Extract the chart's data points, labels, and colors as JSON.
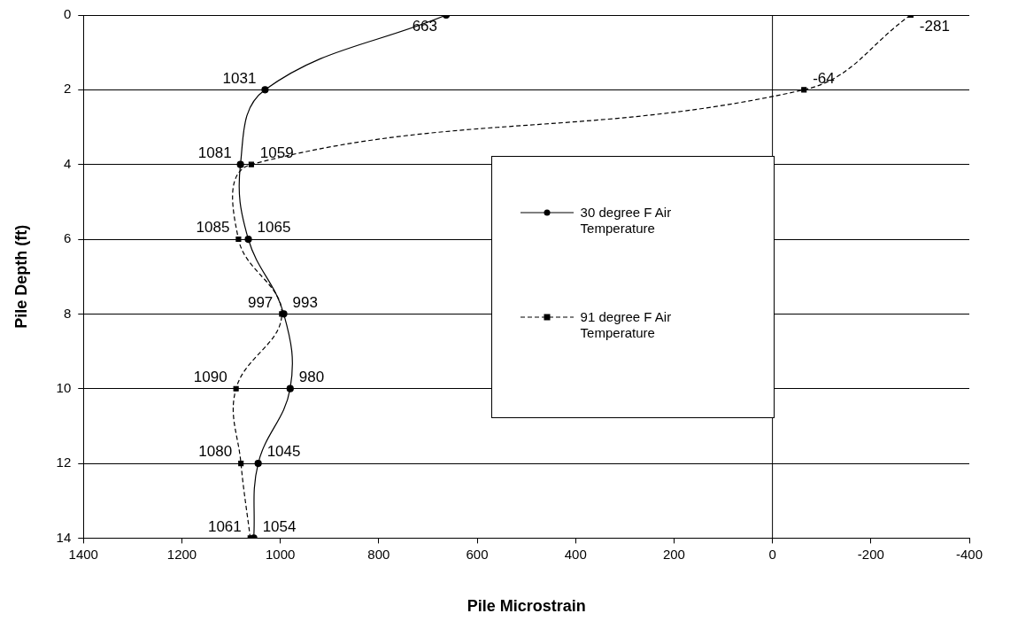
{
  "chart_data": {
    "type": "line",
    "orientation": "horizontal",
    "xlabel": "Pile Microstrain",
    "ylabel": "Pile Depth (ft)",
    "xlim": [
      1400,
      -400
    ],
    "xticks": [
      1400,
      1200,
      1000,
      800,
      600,
      400,
      200,
      0,
      -200,
      -400
    ],
    "ylim": [
      14,
      0
    ],
    "yticks": [
      0,
      2,
      4,
      6,
      8,
      10,
      12,
      14
    ],
    "grid": "y",
    "legend": "right",
    "data_labels": true,
    "ref_lines": [
      {
        "axis": "x",
        "value": 0,
        "color": "#000000"
      }
    ],
    "series": [
      {
        "name": "30 degree F Air Temperature",
        "color": "#000000",
        "marker": "circle",
        "line_style": "solid",
        "x": [
          0,
          2,
          4,
          6,
          8,
          10,
          12,
          14
        ],
        "values": [
          663,
          1031,
          1081,
          1065,
          993,
          980,
          1045,
          1054
        ]
      },
      {
        "name": "91 degree F Air Temperature",
        "color": "#000000",
        "marker": "square",
        "line_style": "dashed",
        "x": [
          0,
          2,
          4,
          6,
          8,
          10,
          12,
          14
        ],
        "values": [
          -281,
          -64,
          1059,
          1085,
          997,
          1090,
          1080,
          1061
        ]
      }
    ]
  }
}
